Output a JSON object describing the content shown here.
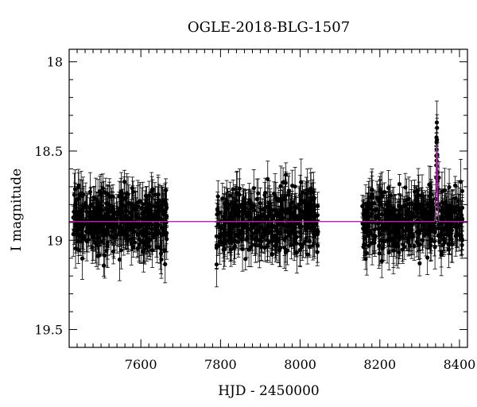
{
  "chart_data": {
    "type": "scatter",
    "title": "OGLE-2018-BLG-1507",
    "xlabel": "HJD - 2450000",
    "ylabel": "I magnitude",
    "xlim": [
      7420,
      8420
    ],
    "ylim": [
      19.6,
      17.93
    ],
    "y_inverted": true,
    "x_ticks": [
      7600,
      7800,
      8000,
      8200,
      8400
    ],
    "y_ticks": [
      18,
      18.5,
      19,
      19.5
    ],
    "x_tick_labels": [
      "7600",
      "7800",
      "8000",
      "8200",
      "8400"
    ],
    "y_tick_labels": [
      "18",
      "18.5",
      "19",
      "19.5"
    ],
    "grid": false,
    "legend": "none",
    "colors": {
      "data": "#000000",
      "model": "#a0309a"
    },
    "model": {
      "baseline": 18.895,
      "peak_x": 8343,
      "peak_mag": 18.47,
      "width_days": 2.5
    },
    "observing_seasons": [
      {
        "start": 7430,
        "end": 7665,
        "count": 460
      },
      {
        "start": 7790,
        "end": 8045,
        "count": 450
      },
      {
        "start": 8155,
        "end": 8410,
        "count": 480
      }
    ],
    "scatter_sigma": 0.085,
    "error_bar_range": [
      0.05,
      0.13
    ],
    "peak_points": [
      {
        "x": 8343.0,
        "y": 18.34
      },
      {
        "x": 8343.6,
        "y": 18.37
      },
      {
        "x": 8342.4,
        "y": 18.45
      },
      {
        "x": 8344.2,
        "y": 18.52
      },
      {
        "x": 8341.8,
        "y": 18.58
      },
      {
        "x": 8344.8,
        "y": 18.62
      }
    ]
  }
}
